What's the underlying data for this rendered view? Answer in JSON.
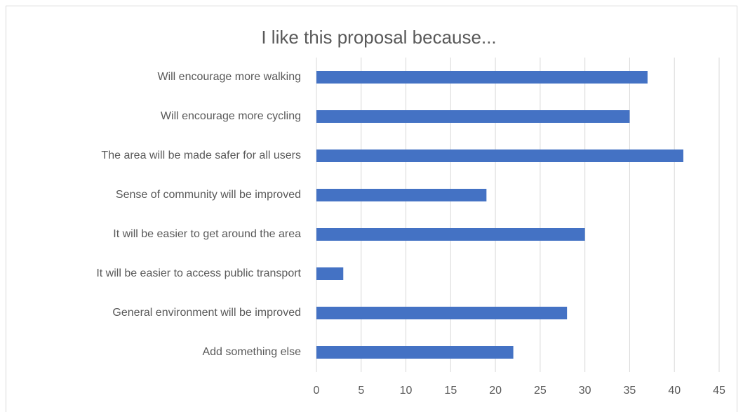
{
  "chart_data": {
    "type": "bar",
    "orientation": "horizontal",
    "title": "I like this proposal because...",
    "categories": [
      "Will encourage more walking",
      "Will encourage more cycling",
      "The area will be made safer for all users",
      "Sense of community will be improved",
      "It will be easier to get around the area",
      "It will be easier to access public transport",
      "General environment will be improved",
      "Add something else"
    ],
    "values": [
      37,
      35,
      41,
      19,
      30,
      3,
      28,
      22
    ],
    "color": "#4472c4",
    "xlim": [
      0,
      45
    ],
    "xticks": [
      0,
      5,
      10,
      15,
      20,
      25,
      30,
      35,
      40,
      45
    ],
    "grid": true
  }
}
